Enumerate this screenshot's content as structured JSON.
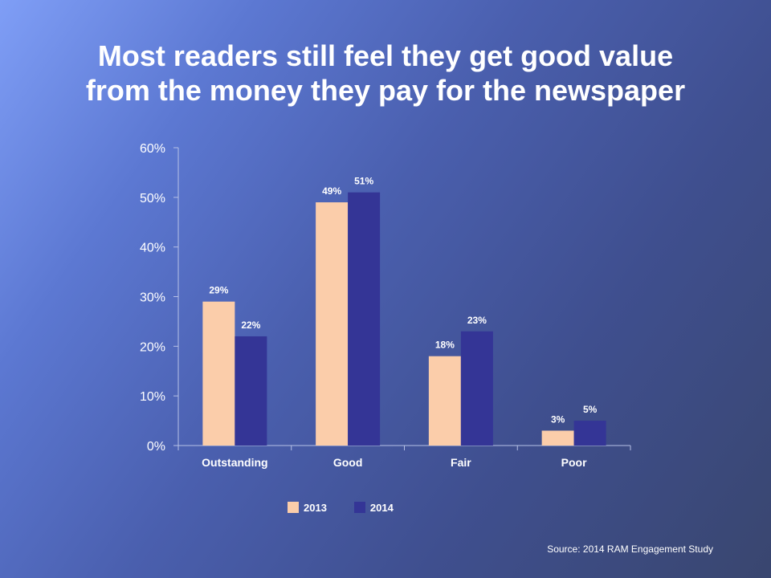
{
  "title_lines": [
    "Most readers still feel they get good value",
    "from the money they pay for the newspaper"
  ],
  "source": "Source:  2014  RAM Engagement Study",
  "colors": {
    "series_2013": "#fbcdaa",
    "series_2014": "#343596",
    "axis": "#b6c1e6",
    "text": "#ffffff"
  },
  "chart_data": {
    "type": "bar",
    "title": "Most readers still feel they get good value from the money they pay for the newspaper",
    "categories": [
      "Outstanding",
      "Good",
      "Fair",
      "Poor"
    ],
    "series": [
      {
        "name": "2013",
        "values": [
          29,
          49,
          18,
          3
        ],
        "labels": [
          "29%",
          "49%",
          "18%",
          "3%"
        ]
      },
      {
        "name": "2014",
        "values": [
          22,
          51,
          23,
          5
        ],
        "labels": [
          "22%",
          "51%",
          "23%",
          "5%"
        ]
      }
    ],
    "y_ticks": [
      "0%",
      "10%",
      "20%",
      "30%",
      "40%",
      "50%",
      "60%"
    ],
    "ylim": [
      0,
      60
    ],
    "grid": false,
    "legend_position": "bottom"
  }
}
